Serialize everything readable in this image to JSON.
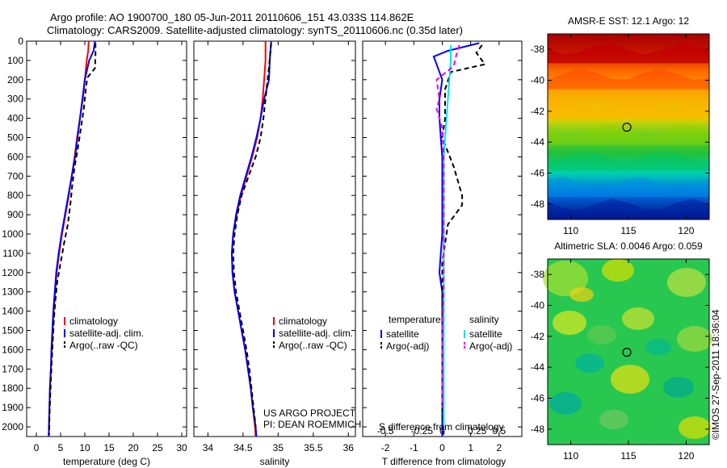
{
  "header": {
    "line1": "Argo profile: AO 1900700_180 05-Jun-2011 20110606_151 43.033S 114.862E",
    "line2": "Climatology: CARS2009. Satellite-adjusted climatology: synTS_20110606.nc (0.35d later)"
  },
  "side_note": "©IMOS 27-Sep-2011 18:36:04",
  "project_note": {
    "line1": "US ARGO PROJECT",
    "line2": "PI: DEAN ROEMMICH"
  },
  "colors": {
    "climatology": "#ff0000",
    "satellite": "#0000ff",
    "argo": "#000000",
    "sal_satellite": "#00e5ee",
    "sal_argo": "#ee00ee",
    "map_marker": "#000000"
  },
  "chart_data": [
    {
      "type": "line",
      "xlabel": "temperature (deg C)",
      "ylabel": "",
      "xlim": [
        -2,
        31
      ],
      "ylim": [
        2050,
        0
      ],
      "x_ticks": [
        0,
        5,
        10,
        15,
        20,
        25,
        30
      ],
      "y_ticks": [
        0,
        100,
        200,
        300,
        400,
        500,
        600,
        700,
        800,
        900,
        1000,
        1100,
        1200,
        1300,
        1400,
        1500,
        1600,
        1700,
        1800,
        1900,
        2000
      ],
      "legend": [
        "climatology",
        "satellite-adj. clim.",
        "Argo(..raw -QC)"
      ],
      "series": [
        {
          "name": "climatology",
          "points": [
            [
              10.8,
              0
            ],
            [
              10.7,
              50
            ],
            [
              10.4,
              100
            ],
            [
              10.0,
              200
            ],
            [
              9.6,
              300
            ],
            [
              9.0,
              400
            ],
            [
              8.4,
              500
            ],
            [
              7.9,
              600
            ],
            [
              7.3,
              700
            ],
            [
              6.7,
              800
            ],
            [
              6.0,
              900
            ],
            [
              5.3,
              1000
            ],
            [
              4.7,
              1100
            ],
            [
              4.2,
              1200
            ],
            [
              3.9,
              1300
            ],
            [
              3.6,
              1400
            ],
            [
              3.4,
              1500
            ],
            [
              3.2,
              1600
            ],
            [
              3.0,
              1700
            ],
            [
              2.8,
              1800
            ],
            [
              2.7,
              1900
            ],
            [
              2.6,
              2000
            ],
            [
              2.55,
              2050
            ]
          ]
        },
        {
          "name": "satellite-adj. clim.",
          "points": [
            [
              12.1,
              0
            ],
            [
              11.8,
              50
            ],
            [
              10.9,
              100
            ],
            [
              10.0,
              200
            ],
            [
              9.5,
              300
            ],
            [
              9.0,
              400
            ],
            [
              8.5,
              500
            ],
            [
              8.0,
              600
            ],
            [
              7.3,
              700
            ],
            [
              6.6,
              800
            ],
            [
              5.9,
              900
            ],
            [
              5.2,
              1000
            ],
            [
              4.6,
              1100
            ],
            [
              4.1,
              1200
            ],
            [
              3.8,
              1300
            ],
            [
              3.5,
              1400
            ],
            [
              3.3,
              1500
            ],
            [
              3.1,
              1600
            ],
            [
              3.0,
              1700
            ],
            [
              2.8,
              1800
            ],
            [
              2.7,
              1900
            ],
            [
              2.6,
              2000
            ],
            [
              2.55,
              2050
            ]
          ]
        },
        {
          "name": "Argo(..raw -QC)",
          "points": [
            [
              12.2,
              10
            ],
            [
              12.2,
              70
            ],
            [
              12.1,
              140
            ],
            [
              10.5,
              190
            ],
            [
              10.2,
              250
            ],
            [
              9.8,
              350
            ],
            [
              9.2,
              450
            ],
            [
              8.6,
              550
            ],
            [
              7.9,
              650
            ],
            [
              7.4,
              750
            ],
            [
              7.0,
              850
            ],
            [
              6.5,
              950
            ],
            [
              5.7,
              1050
            ],
            [
              5.0,
              1150
            ],
            [
              4.3,
              1250
            ],
            [
              3.9,
              1350
            ],
            [
              3.6,
              1450
            ],
            [
              3.4,
              1550
            ],
            [
              3.2,
              1650
            ],
            [
              3.0,
              1750
            ],
            [
              2.85,
              1850
            ],
            [
              2.7,
              1950
            ],
            [
              2.65,
              2040
            ]
          ]
        }
      ]
    },
    {
      "type": "line",
      "xlabel": "salinity",
      "ylabel": "",
      "xlim": [
        33.8,
        36.1
      ],
      "ylim": [
        2050,
        0
      ],
      "x_ticks": [
        34,
        34.5,
        35,
        35.5,
        36
      ],
      "legend": [
        "climatology",
        "satellite-adj. clim.",
        "Argo(..raw -QC)"
      ],
      "series": [
        {
          "name": "climatology",
          "points": [
            [
              34.82,
              0
            ],
            [
              34.82,
              100
            ],
            [
              34.8,
              200
            ],
            [
              34.78,
              300
            ],
            [
              34.75,
              400
            ],
            [
              34.7,
              500
            ],
            [
              34.63,
              600
            ],
            [
              34.55,
              700
            ],
            [
              34.47,
              800
            ],
            [
              34.41,
              900
            ],
            [
              34.36,
              1000
            ],
            [
              34.34,
              1100
            ],
            [
              34.35,
              1200
            ],
            [
              34.38,
              1300
            ],
            [
              34.43,
              1400
            ],
            [
              34.48,
              1500
            ],
            [
              34.53,
              1600
            ],
            [
              34.57,
              1700
            ],
            [
              34.61,
              1800
            ],
            [
              34.64,
              1900
            ],
            [
              34.67,
              2000
            ],
            [
              34.68,
              2050
            ]
          ]
        },
        {
          "name": "satellite-adj. clim.",
          "points": [
            [
              34.9,
              0
            ],
            [
              34.88,
              100
            ],
            [
              34.87,
              200
            ],
            [
              34.8,
              300
            ],
            [
              34.75,
              400
            ],
            [
              34.69,
              500
            ],
            [
              34.62,
              600
            ],
            [
              34.54,
              700
            ],
            [
              34.46,
              800
            ],
            [
              34.4,
              900
            ],
            [
              34.36,
              1000
            ],
            [
              34.34,
              1100
            ],
            [
              34.35,
              1200
            ],
            [
              34.38,
              1300
            ],
            [
              34.43,
              1400
            ],
            [
              34.48,
              1500
            ],
            [
              34.53,
              1600
            ],
            [
              34.57,
              1700
            ],
            [
              34.61,
              1800
            ],
            [
              34.64,
              1900
            ],
            [
              34.68,
              2000
            ],
            [
              34.69,
              2050
            ]
          ]
        },
        {
          "name": "Argo(..raw -QC)",
          "points": [
            [
              34.9,
              10
            ],
            [
              34.88,
              100
            ],
            [
              34.85,
              200
            ],
            [
              34.82,
              300
            ],
            [
              34.79,
              400
            ],
            [
              34.75,
              500
            ],
            [
              34.68,
              600
            ],
            [
              34.58,
              700
            ],
            [
              34.48,
              800
            ],
            [
              34.42,
              900
            ],
            [
              34.38,
              1000
            ],
            [
              34.36,
              1100
            ],
            [
              34.37,
              1200
            ],
            [
              34.4,
              1300
            ],
            [
              34.45,
              1400
            ],
            [
              34.5,
              1500
            ],
            [
              34.55,
              1600
            ],
            [
              34.59,
              1700
            ],
            [
              34.62,
              1800
            ],
            [
              34.65,
              1900
            ],
            [
              34.68,
              2000
            ]
          ]
        }
      ]
    },
    {
      "type": "line",
      "xlabel": "T difference from climatology",
      "xlabel_top": "S difference from climatology",
      "xlim": [
        -2.8,
        2.8
      ],
      "ylim": [
        2050,
        0
      ],
      "x_ticks": [
        -2,
        -1,
        0,
        1,
        2
      ],
      "x_ticks_top_labels": [
        "-0.5",
        "-0.25",
        "0",
        "0.25",
        "0.5"
      ],
      "x_ticks_top_values": [
        -2,
        -1,
        0,
        1,
        2
      ],
      "legend_groups": [
        {
          "title": "temperature",
          "items": [
            "satellite",
            "Argo(-adj)"
          ]
        },
        {
          "title": "salinity",
          "items": [
            "satellite",
            "Argo(-adj)"
          ]
        }
      ],
      "series": [
        {
          "name": "satellite",
          "group": "temperature",
          "points": [
            [
              1.3,
              10
            ],
            [
              0.2,
              50
            ],
            [
              -0.3,
              80
            ],
            [
              -0.2,
              120
            ],
            [
              0,
              200
            ],
            [
              -0.1,
              300
            ],
            [
              -0.1,
              400
            ],
            [
              -0.05,
              500
            ],
            [
              0,
              600
            ],
            [
              0,
              800
            ],
            [
              0,
              900
            ],
            [
              0,
              1000
            ],
            [
              -0.05,
              1100
            ],
            [
              -0.1,
              1200
            ],
            [
              0,
              1300
            ],
            [
              0,
              1500
            ],
            [
              0,
              1700
            ],
            [
              0,
              2050
            ]
          ]
        },
        {
          "name": "Argo(-adj)",
          "group": "temperature",
          "points": [
            [
              1.4,
              20
            ],
            [
              1.2,
              60
            ],
            [
              1.5,
              120
            ],
            [
              0.3,
              160
            ],
            [
              0.1,
              250
            ],
            [
              0.1,
              400
            ],
            [
              0.0,
              500
            ],
            [
              0.4,
              650
            ],
            [
              0.7,
              800
            ],
            [
              0.7,
              850
            ],
            [
              0.2,
              950
            ],
            [
              0.1,
              1050
            ],
            [
              0.0,
              1150
            ],
            [
              0.0,
              1300
            ],
            [
              0.0,
              1500
            ],
            [
              0.0,
              1700
            ],
            [
              0.0,
              1900
            ],
            [
              0.05,
              2040
            ]
          ]
        },
        {
          "name": "satellite",
          "group": "salinity",
          "points": [
            [
              0.3,
              20
            ],
            [
              0.3,
              100
            ],
            [
              0.25,
              200
            ],
            [
              0.2,
              300
            ],
            [
              0.15,
              400
            ],
            [
              0.1,
              500
            ],
            [
              0.05,
              600
            ],
            [
              0.05,
              800
            ],
            [
              0.05,
              1000
            ],
            [
              0.05,
              1200
            ],
            [
              0.05,
              1400
            ],
            [
              0.05,
              1600
            ],
            [
              0.05,
              1800
            ],
            [
              0.05,
              2000
            ]
          ]
        },
        {
          "name": "Argo(-adj)",
          "group": "salinity",
          "points": [
            [
              0.6,
              20
            ],
            [
              0.5,
              70
            ],
            [
              0.4,
              130
            ],
            [
              -0.2,
              200
            ],
            [
              -0.1,
              300
            ],
            [
              -0.2,
              350
            ],
            [
              0.0,
              450
            ],
            [
              0.05,
              600
            ],
            [
              0.05,
              800
            ],
            [
              0.05,
              950
            ],
            [
              0.05,
              1100
            ],
            [
              0.05,
              1300
            ],
            [
              0.0,
              1500
            ],
            [
              0.0,
              1700
            ],
            [
              0.0,
              1900
            ]
          ]
        }
      ]
    },
    {
      "type": "heatmap",
      "title": "AMSR-E SST: 12.1 Argo: 12",
      "xlim": [
        108,
        122
      ],
      "ylim": [
        -49,
        -37
      ],
      "x_ticks": [
        110,
        115,
        120
      ],
      "y_ticks": [
        -38,
        -40,
        -42,
        -44,
        -46,
        -48
      ],
      "marker": {
        "lon": 114.862,
        "lat": -43.033
      }
    },
    {
      "type": "heatmap",
      "title": "Altimetric SLA: 0.0046 Argo: 0.059",
      "xlim": [
        108,
        122
      ],
      "ylim": [
        -49,
        -37
      ],
      "x_ticks": [
        110,
        115,
        120
      ],
      "y_ticks": [
        -38,
        -40,
        -42,
        -44,
        -46,
        -48
      ],
      "marker": {
        "lon": 114.862,
        "lat": -43.033
      }
    }
  ]
}
